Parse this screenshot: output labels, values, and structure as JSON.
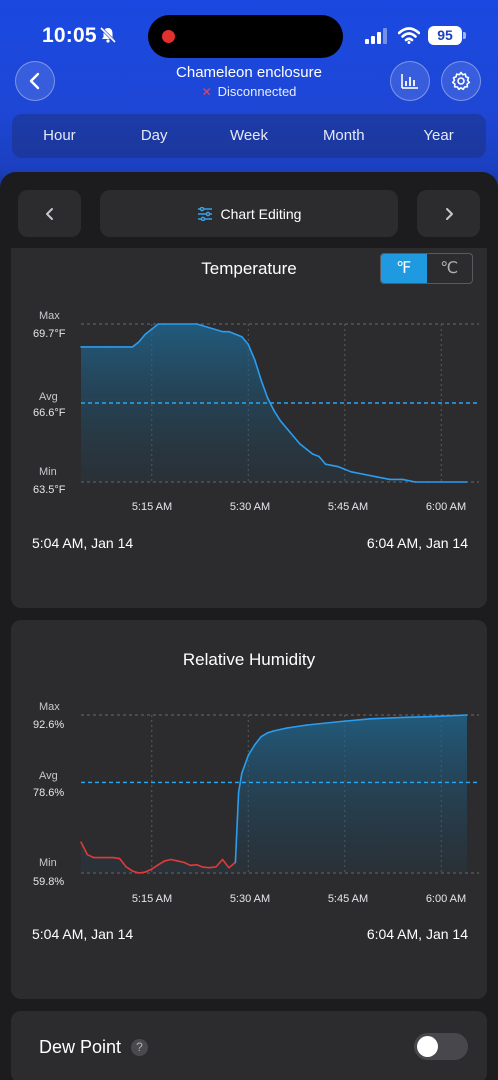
{
  "status_bar": {
    "time": "10:05",
    "battery": "95"
  },
  "header": {
    "title": "Chameleon enclosure",
    "status": "Disconnected"
  },
  "tabs": [
    {
      "label": "Hour",
      "active": true
    },
    {
      "label": "Day",
      "active": false
    },
    {
      "label": "Week",
      "active": false
    },
    {
      "label": "Month",
      "active": false
    },
    {
      "label": "Year",
      "active": false
    }
  ],
  "toolbar": {
    "edit_label": "Chart Editing"
  },
  "temperature": {
    "title": "Temperature",
    "units": [
      "℉",
      "℃"
    ],
    "active_unit": "℉",
    "max_label": "Max",
    "max_value": "69.7°F",
    "avg_label": "Avg",
    "avg_value": "66.6°F",
    "min_label": "Min",
    "min_value": "63.5°F",
    "ticks": [
      "5:15 AM",
      "5:30 AM",
      "5:45 AM",
      "6:00 AM"
    ],
    "range_start": "5:04 AM,  Jan 14",
    "range_end": "6:04 AM,  Jan 14"
  },
  "humidity": {
    "title": "Relative Humidity",
    "max_label": "Max",
    "max_value": "92.6%",
    "avg_label": "Avg",
    "avg_value": "78.6%",
    "min_label": "Min",
    "min_value": "59.8%",
    "ticks": [
      "5:15 AM",
      "5:30 AM",
      "5:45 AM",
      "6:00 AM"
    ],
    "range_start": "5:04 AM,  Jan 14",
    "range_end": "6:04 AM,  Jan 14"
  },
  "dew_point": {
    "label": "Dew Point",
    "help": "?",
    "enabled": false
  },
  "colors": {
    "accent": "#1f9ae0",
    "line_blue": "#2a9df0",
    "line_red": "#e03a3a",
    "brand_blue": "#1a48e0"
  },
  "chart_data": [
    {
      "type": "line",
      "title": "Temperature",
      "x_unit": "minutes past 5:04 AM",
      "x_tick_labels": [
        "5:15 AM",
        "5:30 AM",
        "5:45 AM",
        "6:00 AM"
      ],
      "ylim": [
        63.5,
        69.7
      ],
      "avg": 66.6,
      "series": [
        {
          "x": [
            0,
            4,
            8,
            9,
            10,
            11,
            12,
            13,
            18,
            22,
            23,
            25,
            26,
            27,
            28,
            29,
            30,
            31,
            32,
            33,
            34,
            35,
            36,
            37,
            38,
            40,
            42,
            44,
            46,
            48,
            50,
            52,
            54,
            56,
            60
          ],
          "y": [
            68.8,
            68.8,
            68.8,
            69.0,
            69.3,
            69.5,
            69.7,
            69.7,
            69.7,
            69.4,
            69.4,
            69.2,
            68.9,
            68.3,
            67.5,
            66.8,
            66.3,
            65.9,
            65.6,
            65.3,
            65.0,
            64.8,
            64.6,
            64.5,
            64.2,
            64.1,
            63.9,
            63.8,
            63.7,
            63.6,
            63.6,
            63.5,
            63.5,
            63.5,
            63.5
          ]
        }
      ]
    },
    {
      "type": "line",
      "title": "Relative Humidity",
      "x_unit": "minutes past 5:04 AM",
      "x_tick_labels": [
        "5:15 AM",
        "5:30 AM",
        "5:45 AM",
        "6:00 AM"
      ],
      "ylim": [
        59.8,
        92.6
      ],
      "avg": 78.6,
      "series": [
        {
          "x": [
            0,
            1,
            2,
            3,
            4,
            5,
            6,
            7,
            8,
            9,
            10,
            11,
            12,
            13,
            14,
            15,
            16,
            17,
            18,
            19,
            20,
            21,
            22,
            23,
            24,
            24.5,
            25,
            26,
            27,
            28,
            29,
            30,
            32,
            35,
            40,
            45,
            50,
            55,
            60
          ],
          "y": [
            66.2,
            63.6,
            63.0,
            63.0,
            63.0,
            63.0,
            62.8,
            61.1,
            60.2,
            59.8,
            60.0,
            60.6,
            61.5,
            62.3,
            62.6,
            62.3,
            62.0,
            61.4,
            61.5,
            61.0,
            60.9,
            61.1,
            62.6,
            60.9,
            62.0,
            76.6,
            80.5,
            84.2,
            86.4,
            88.1,
            88.9,
            89.3,
            89.9,
            90.5,
            91.2,
            91.8,
            92.1,
            92.3,
            92.6
          ]
        }
      ]
    }
  ]
}
